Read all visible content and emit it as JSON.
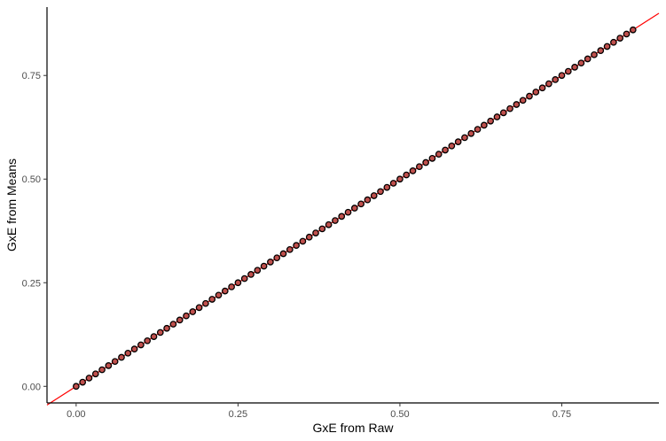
{
  "chart_data": {
    "type": "scatter",
    "title": "",
    "xlabel": "GxE from Raw",
    "ylabel": "GxE from Means",
    "xlim": [
      -0.045,
      0.9
    ],
    "ylim": [
      -0.04,
      0.915
    ],
    "x_ticks": [
      0.0,
      0.25,
      0.5,
      0.75
    ],
    "x_tick_labels": [
      "0.00",
      "0.25",
      "0.50",
      "0.75"
    ],
    "y_ticks": [
      0.0,
      0.25,
      0.5,
      0.75
    ],
    "y_tick_labels": [
      "0.00",
      "0.25",
      "0.50",
      "0.75"
    ],
    "grid": false,
    "legend": "none",
    "reference_line": {
      "slope": 1,
      "intercept": 0,
      "color": "#ff0000"
    },
    "point_style": {
      "fill": "#c0504d",
      "stroke": "#000000"
    },
    "series": [
      {
        "points": {
          "x": [
            0.0,
            0.01,
            0.02,
            0.03,
            0.04,
            0.05,
            0.06,
            0.07,
            0.08,
            0.09,
            0.1,
            0.11,
            0.12,
            0.13,
            0.14,
            0.15,
            0.16,
            0.17,
            0.18,
            0.19,
            0.2,
            0.21,
            0.22,
            0.23,
            0.24,
            0.25,
            0.26,
            0.27,
            0.28,
            0.29,
            0.3,
            0.31,
            0.32,
            0.33,
            0.34,
            0.35,
            0.36,
            0.37,
            0.38,
            0.39,
            0.4,
            0.41,
            0.42,
            0.43,
            0.44,
            0.45,
            0.46,
            0.47,
            0.48,
            0.49,
            0.5,
            0.51,
            0.52,
            0.53,
            0.54,
            0.55,
            0.56,
            0.57,
            0.58,
            0.59,
            0.6,
            0.61,
            0.62,
            0.63,
            0.64,
            0.65,
            0.66,
            0.67,
            0.68,
            0.69,
            0.7,
            0.71,
            0.72,
            0.73,
            0.74,
            0.75,
            0.76,
            0.77,
            0.78,
            0.79,
            0.8,
            0.81,
            0.82,
            0.83,
            0.84,
            0.85,
            0.86
          ],
          "y": [
            0.0,
            0.01,
            0.02,
            0.03,
            0.04,
            0.05,
            0.06,
            0.07,
            0.08,
            0.09,
            0.1,
            0.11,
            0.12,
            0.13,
            0.14,
            0.15,
            0.16,
            0.17,
            0.18,
            0.19,
            0.2,
            0.21,
            0.22,
            0.23,
            0.24,
            0.25,
            0.26,
            0.27,
            0.28,
            0.29,
            0.3,
            0.31,
            0.32,
            0.33,
            0.34,
            0.35,
            0.36,
            0.37,
            0.38,
            0.39,
            0.4,
            0.41,
            0.42,
            0.43,
            0.44,
            0.45,
            0.46,
            0.47,
            0.48,
            0.49,
            0.5,
            0.51,
            0.52,
            0.53,
            0.54,
            0.55,
            0.56,
            0.57,
            0.58,
            0.59,
            0.6,
            0.61,
            0.62,
            0.63,
            0.64,
            0.65,
            0.66,
            0.67,
            0.68,
            0.69,
            0.7,
            0.71,
            0.72,
            0.73,
            0.74,
            0.75,
            0.76,
            0.77,
            0.78,
            0.79,
            0.8,
            0.81,
            0.82,
            0.83,
            0.84,
            0.85,
            0.86
          ]
        }
      }
    ]
  }
}
